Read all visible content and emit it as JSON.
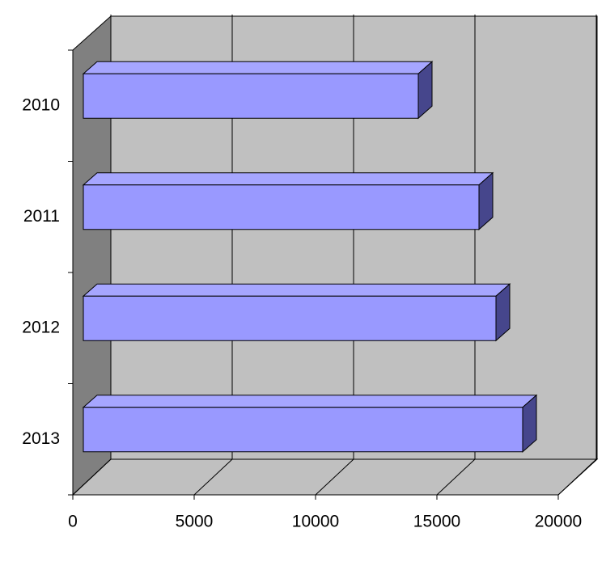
{
  "chart_data": {
    "type": "bar3d",
    "orientation": "horizontal",
    "categories": [
      "2010",
      "2011",
      "2012",
      "2013"
    ],
    "values": [
      13800,
      16300,
      17000,
      18100
    ],
    "color": "#9999ff",
    "xlim": [
      0,
      20000
    ],
    "xticks": [
      0,
      5000,
      10000,
      15000,
      20000
    ],
    "grid": true
  }
}
